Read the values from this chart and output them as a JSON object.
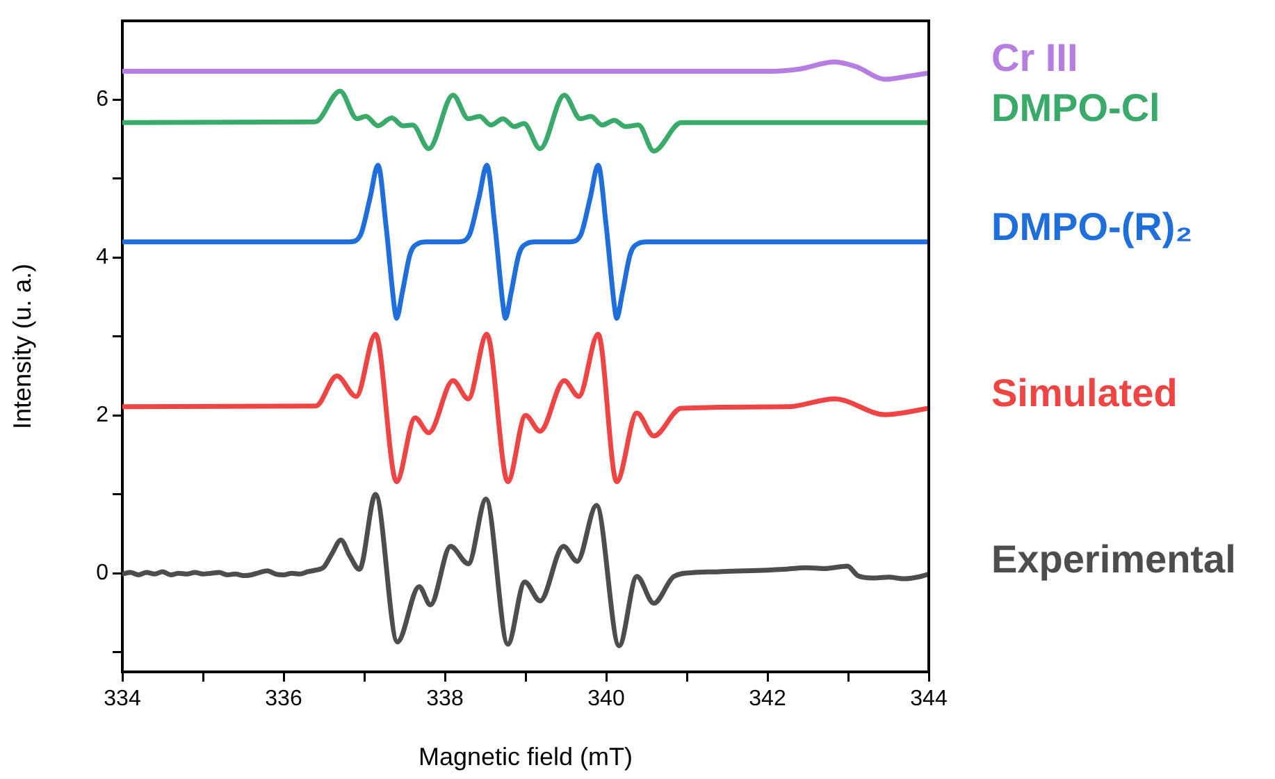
{
  "chart_data": {
    "type": "line",
    "xlabel": "Magnetic field (mT)",
    "ylabel": "Intensity (u. a.)",
    "xlim": [
      334,
      344
    ],
    "xticks": [
      334,
      {
        "value": 335,
        "label": null
      },
      336,
      {
        "value": 337,
        "label": null
      },
      338,
      {
        "value": 339,
        "label": null
      },
      340,
      {
        "value": 341,
        "label": null
      },
      342,
      {
        "value": 343,
        "label": null
      },
      344
    ],
    "ylim": [
      -1.25,
      7
    ],
    "yticks": [
      {
        "value": -1,
        "label": null
      },
      0,
      {
        "value": 1,
        "label": null
      },
      2,
      {
        "value": 3,
        "label": null
      },
      4,
      {
        "value": 5,
        "label": null
      },
      6
    ],
    "grid": false,
    "legend": "right",
    "marker": "none",
    "line_style": "solid",
    "series": [
      {
        "name": "Cr III",
        "color": "#b57ee0",
        "x": [
          334,
          342.0,
          342.4,
          342.83,
          343.1,
          343.46,
          343.7,
          344
        ],
        "values": [
          6.36,
          6.36,
          6.39,
          6.48,
          6.42,
          6.26,
          6.29,
          6.34
        ]
      },
      {
        "name": "DMPO-Cl",
        "color": "#3aaa6a",
        "x": [
          334,
          336.39,
          336.7,
          336.91,
          337.02,
          337.17,
          337.34,
          337.48,
          337.6,
          337.8,
          338.1,
          338.29,
          338.43,
          338.57,
          338.72,
          338.86,
          338.98,
          339.18,
          339.48,
          339.68,
          339.81,
          339.95,
          340.1,
          340.24,
          340.4,
          340.59,
          340.93,
          344
        ],
        "values": [
          5.71,
          5.72,
          6.11,
          5.76,
          5.79,
          5.67,
          5.77,
          5.67,
          5.68,
          5.38,
          6.06,
          5.76,
          5.79,
          5.68,
          5.76,
          5.66,
          5.7,
          5.38,
          6.06,
          5.76,
          5.79,
          5.68,
          5.74,
          5.66,
          5.68,
          5.35,
          5.71,
          5.71
        ]
      },
      {
        "name": "DMPO-(R)₂",
        "color": "#1e6fdc",
        "x": [
          334,
          336.82,
          336.95,
          337.07,
          337.17,
          337.27,
          337.37,
          337.4,
          337.47,
          337.57,
          337.67,
          337.77,
          338.17,
          338.3,
          338.42,
          338.52,
          338.62,
          338.72,
          338.75,
          338.82,
          338.92,
          339.02,
          339.12,
          339.55,
          339.68,
          339.8,
          339.9,
          340.0,
          340.1,
          340.13,
          340.2,
          340.3,
          340.4,
          340.5,
          344
        ],
        "values": [
          4.2,
          4.2,
          4.28,
          4.75,
          5.17,
          4.4,
          3.4,
          3.23,
          3.55,
          4.05,
          4.18,
          4.2,
          4.2,
          4.28,
          4.75,
          5.17,
          4.4,
          3.4,
          3.23,
          3.55,
          4.05,
          4.18,
          4.2,
          4.2,
          4.28,
          4.75,
          5.17,
          4.4,
          3.4,
          3.23,
          3.55,
          4.05,
          4.18,
          4.2,
          4.2
        ]
      },
      {
        "name": "Simulated",
        "color": "#ef4444",
        "x": [
          334,
          336.4,
          336.66,
          336.9,
          337.14,
          337.4,
          337.63,
          337.8,
          338.1,
          338.29,
          338.52,
          338.78,
          339.0,
          339.18,
          339.48,
          339.66,
          339.9,
          340.13,
          340.38,
          340.59,
          340.93,
          342.25,
          342.83,
          343.46,
          344
        ],
        "values": [
          2.11,
          2.12,
          2.5,
          2.24,
          3.03,
          1.16,
          1.97,
          1.78,
          2.44,
          2.21,
          3.03,
          1.16,
          2.0,
          1.8,
          2.44,
          2.24,
          3.03,
          1.16,
          2.03,
          1.74,
          2.09,
          2.11,
          2.21,
          2.01,
          2.09
        ]
      },
      {
        "name": "Experimental",
        "color": "#4d4d4d",
        "x": [
          334,
          334.1,
          334.2,
          334.3,
          334.4,
          334.5,
          334.6,
          334.7,
          334.8,
          334.9,
          335.0,
          335.1,
          335.2,
          335.3,
          335.4,
          335.5,
          335.6,
          335.7,
          335.8,
          335.9,
          336.0,
          336.1,
          336.2,
          336.3,
          336.4,
          336.5,
          336.6,
          336.71,
          336.82,
          336.94,
          337.14,
          337.41,
          337.68,
          337.82,
          338.07,
          338.29,
          338.51,
          338.78,
          338.99,
          339.18,
          339.47,
          339.64,
          339.88,
          340.16,
          340.38,
          340.59,
          340.84,
          341.1,
          341.4,
          341.7,
          342.0,
          342.2,
          342.48,
          342.7,
          342.99,
          343.12,
          343.3,
          343.5,
          343.7,
          343.9,
          344
        ],
        "values": [
          -0.01,
          0.01,
          -0.02,
          0.01,
          -0.01,
          0.02,
          -0.02,
          0.0,
          -0.01,
          0.01,
          -0.01,
          0.0,
          0.01,
          -0.02,
          -0.01,
          -0.03,
          -0.02,
          0.01,
          0.03,
          -0.01,
          -0.02,
          0.0,
          -0.01,
          0.02,
          0.04,
          0.08,
          0.25,
          0.42,
          0.22,
          0.05,
          1.0,
          -0.87,
          -0.17,
          -0.4,
          0.34,
          0.12,
          0.94,
          -0.9,
          -0.11,
          -0.35,
          0.34,
          0.15,
          0.86,
          -0.92,
          -0.04,
          -0.38,
          -0.04,
          0.01,
          0.02,
          0.03,
          0.04,
          0.05,
          0.07,
          0.06,
          0.09,
          -0.03,
          -0.06,
          -0.05,
          -0.07,
          -0.04,
          -0.01
        ]
      }
    ]
  }
}
